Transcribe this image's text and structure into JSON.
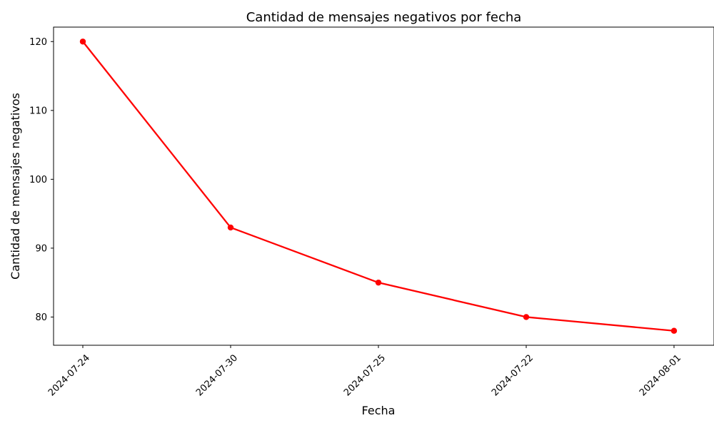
{
  "chart_data": {
    "type": "line",
    "title": "Cantidad de mensajes negativos por fecha",
    "xlabel": "Fecha",
    "ylabel": "Cantidad de mensajes negativos",
    "categories": [
      "2024-07-24",
      "2024-07-30",
      "2024-07-25",
      "2024-07-22",
      "2024-08-01"
    ],
    "series": [
      {
        "values": [
          120,
          93,
          85,
          80,
          78
        ],
        "color": "#ff0000"
      }
    ],
    "y_ticks": [
      80,
      90,
      100,
      110,
      120
    ],
    "ylim": [
      75.9,
      122.1
    ],
    "grid": false,
    "markers": "circle"
  }
}
